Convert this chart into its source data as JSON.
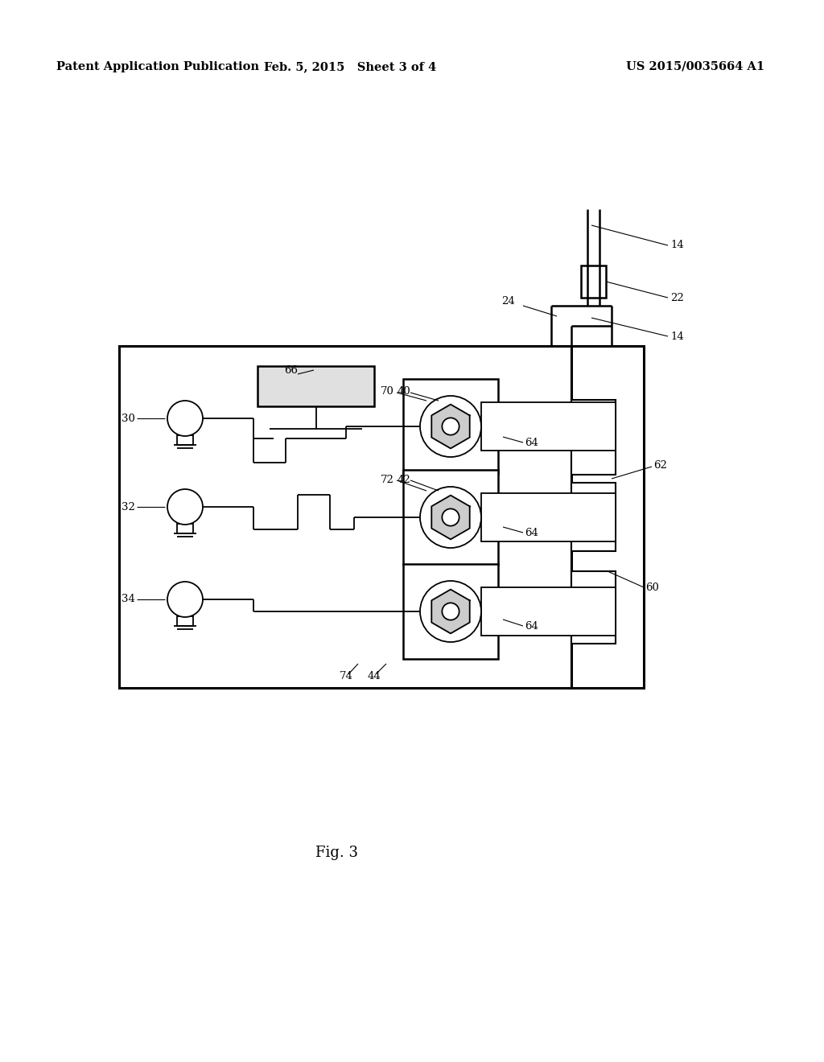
{
  "bg_color": "#ffffff",
  "header_left": "Patent Application Publication",
  "header_mid": "Feb. 5, 2015   Sheet 3 of 4",
  "header_right": "US 2015/0035664 A1",
  "fig_label": "Fig. 3",
  "lw_main": 1.8,
  "lw_thin": 1.3,
  "fs_label": 9.5,
  "fs_header": 10
}
